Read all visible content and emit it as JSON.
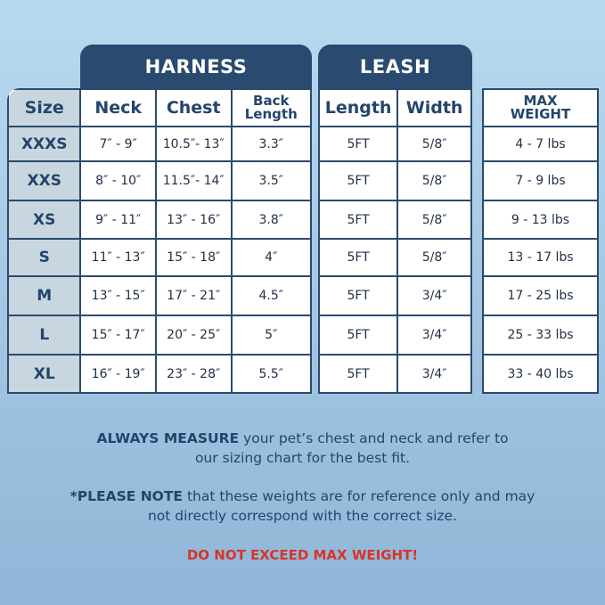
{
  "harness": {
    "title": "HARNESS",
    "columns": [
      "Neck",
      "Chest",
      "Back Length"
    ]
  },
  "leash": {
    "title": "LEASH",
    "columns": [
      "Length",
      "Width"
    ]
  },
  "size_header": "Size",
  "max_weight_header": "MAX WEIGHT",
  "rows": [
    {
      "size": "XXXS",
      "neck": "7″ - 9″",
      "chest": "10.5″- 13″",
      "back": "3.3″",
      "length": "5FT",
      "width": "5/8″",
      "weight": "4 - 7 lbs"
    },
    {
      "size": "XXS",
      "neck": "8″ - 10″",
      "chest": "11.5″- 14″",
      "back": "3.5″",
      "length": "5FT",
      "width": "5/8″",
      "weight": "7 - 9 lbs"
    },
    {
      "size": "XS",
      "neck": "9″ - 11″",
      "chest": "13″ - 16″",
      "back": "3.8″",
      "length": "5FT",
      "width": "5/8″",
      "weight": "9 - 13 lbs"
    },
    {
      "size": "S",
      "neck": "11″ - 13″",
      "chest": "15″ - 18″",
      "back": "4″",
      "length": "5FT",
      "width": "5/8″",
      "weight": "13 - 17 lbs"
    },
    {
      "size": "M",
      "neck": "13″ - 15″",
      "chest": "17″ - 21″",
      "back": "4.5″",
      "length": "5FT",
      "width": "3/4″",
      "weight": "17 - 25 lbs"
    },
    {
      "size": "L",
      "neck": "15″ - 17″",
      "chest": "20″ - 25″",
      "back": "5″",
      "length": "5FT",
      "width": "3/4″",
      "weight": "25 - 33 lbs"
    },
    {
      "size": "XL",
      "neck": "16″ - 19″",
      "chest": "23″ - 28″",
      "back": "5.5″",
      "length": "5FT",
      "width": "3/4″",
      "weight": "33 - 40 lbs"
    }
  ],
  "notes": {
    "measure_bold": "ALWAYS MEASURE",
    "measure_text": " your pet’s chest and neck and refer to our sizing chart for the best fit.",
    "please_bold": "*PLEASE NOTE",
    "please_text": " that these weights are for reference only and may not directly correspond with the correct size.",
    "warning": "DO NOT EXCEED MAX WEIGHT!"
  },
  "colors": {
    "header": "#2a4a6f",
    "size_column": "#c8d6e0",
    "warning": "#d8342a"
  }
}
